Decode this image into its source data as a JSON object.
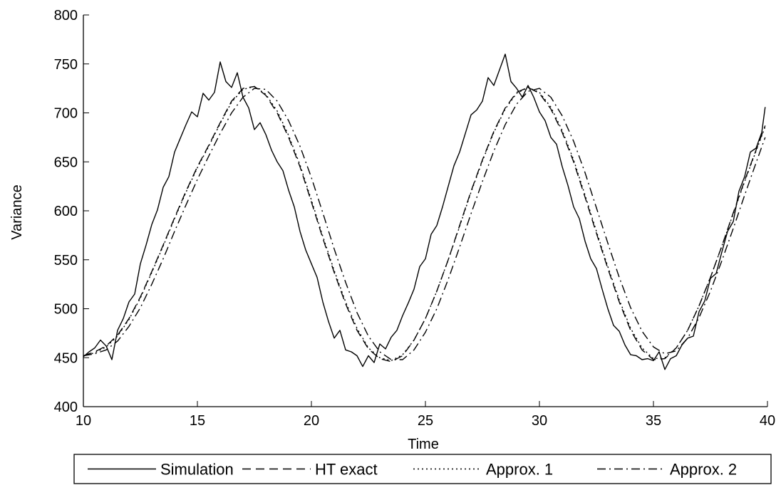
{
  "chart_data": {
    "type": "line",
    "xlabel": "Time",
    "ylabel": "Variance",
    "xlim": [
      10,
      40
    ],
    "ylim": [
      400,
      800
    ],
    "xticks": [
      10,
      15,
      20,
      25,
      30,
      35,
      40
    ],
    "yticks": [
      400,
      450,
      500,
      550,
      600,
      650,
      700,
      750,
      800
    ],
    "xtick_labels": [
      "10",
      "15",
      "20",
      "25",
      "30",
      "35",
      "40"
    ],
    "ytick_labels": [
      "400",
      "450",
      "500",
      "550",
      "600",
      "650",
      "700",
      "750",
      "800"
    ],
    "grid": false,
    "legend_position": "bottom",
    "legend_orientation": "horizontal",
    "line_color": "#000000",
    "series": [
      {
        "name": "Simulation",
        "style": "solid",
        "x": [
          10.0,
          10.25,
          10.5,
          10.75,
          11.0,
          11.25,
          11.5,
          11.75,
          12.0,
          12.25,
          12.5,
          12.75,
          13.0,
          13.25,
          13.5,
          13.75,
          14.0,
          14.25,
          14.5,
          14.75,
          15.0,
          15.25,
          15.5,
          15.75,
          16.0,
          16.25,
          16.5,
          16.75,
          17.0,
          17.25,
          17.5,
          17.75,
          18.0,
          18.25,
          18.5,
          18.75,
          19.0,
          19.25,
          19.5,
          19.75,
          20.0,
          20.25,
          20.5,
          20.75,
          21.0,
          21.25,
          21.5,
          21.75,
          22.0,
          22.25,
          22.5,
          22.75,
          23.0,
          23.25,
          23.5,
          23.75,
          24.0,
          24.25,
          24.5,
          24.75,
          25.0,
          25.25,
          25.5,
          25.75,
          26.0,
          26.25,
          26.5,
          26.75,
          27.0,
          27.25,
          27.5,
          27.75,
          28.0,
          28.25,
          28.5,
          28.75,
          29.0,
          29.25,
          29.5,
          29.75,
          30.0,
          30.25,
          30.5,
          30.75,
          31.0,
          31.25,
          31.5,
          31.75,
          32.0,
          32.25,
          32.5,
          32.75,
          33.0,
          33.25,
          33.5,
          33.75,
          34.0,
          34.25,
          34.5,
          34.75,
          35.0,
          35.25,
          35.5,
          35.75,
          36.0,
          36.25,
          36.5,
          36.75,
          37.0,
          37.25,
          37.5,
          37.75,
          38.0,
          38.25,
          38.5,
          38.75,
          39.0,
          39.25,
          39.5,
          39.75,
          39.9
        ],
        "y": [
          451,
          456,
          460,
          468,
          462,
          448,
          478,
          490,
          507,
          515,
          546,
          565,
          586,
          601,
          624,
          635,
          660,
          674,
          688,
          701,
          696,
          720,
          713,
          721,
          752,
          732,
          726,
          741,
          716,
          705,
          683,
          690,
          678,
          662,
          650,
          641,
          621,
          604,
          579,
          560,
          546,
          532,
          507,
          487,
          470,
          478,
          458,
          456,
          452,
          441,
          452,
          445,
          464,
          459,
          471,
          478,
          493,
          506,
          520,
          543,
          551,
          576,
          585,
          604,
          625,
          646,
          660,
          679,
          698,
          703,
          712,
          736,
          728,
          744,
          760,
          732,
          725,
          716,
          728,
          716,
          701,
          692,
          675,
          668,
          645,
          626,
          604,
          592,
          569,
          551,
          541,
          520,
          500,
          483,
          477,
          463,
          453,
          452,
          448,
          449,
          447,
          456,
          438,
          449,
          452,
          463,
          470,
          472,
          497,
          508,
          531,
          536,
          558,
          579,
          589,
          620,
          635,
          660,
          664,
          680,
          706
        ]
      },
      {
        "name": "HT exact",
        "style": "dashed",
        "x": [
          10,
          10.5,
          11,
          11.5,
          12,
          12.5,
          13,
          13.5,
          14,
          14.5,
          15,
          15.5,
          16,
          16.5,
          17,
          17.5,
          18,
          18.5,
          19,
          19.5,
          20,
          20.5,
          21,
          21.5,
          22,
          22.5,
          23,
          23.5,
          24,
          24.5,
          25,
          25.5,
          26,
          26.5,
          27,
          27.5,
          28,
          28.5,
          29,
          29.5,
          30,
          30.5,
          31,
          31.5,
          32,
          32.5,
          33,
          33.5,
          34,
          34.5,
          35,
          35.5,
          36,
          36.5,
          37,
          37.5,
          38,
          38.5,
          39,
          39.5,
          39.9
        ],
        "y": [
          452,
          456,
          462,
          473,
          490,
          512,
          538,
          565,
          593,
          620,
          645,
          667,
          690,
          712,
          725,
          727,
          718,
          700,
          675,
          645,
          609,
          572,
          537,
          505,
          478,
          459,
          449,
          446,
          452,
          468,
          490,
          518,
          550,
          585,
          620,
          652,
          681,
          705,
          721,
          726,
          720,
          704,
          680,
          650,
          614,
          577,
          541,
          507,
          478,
          458,
          448,
          449,
          460,
          478,
          503,
          532,
          564,
          598,
          631,
          662,
          687
        ]
      },
      {
        "name": "Approx. 1",
        "style": "dotted",
        "x": [
          10,
          10.5,
          11,
          11.5,
          12,
          12.5,
          13,
          13.5,
          14,
          14.5,
          15,
          15.5,
          16,
          16.5,
          17,
          17.5,
          18,
          18.5,
          19,
          19.5,
          20,
          20.5,
          21,
          21.5,
          22,
          22.5,
          23,
          23.5,
          24,
          24.5,
          25,
          25.5,
          26,
          26.5,
          27,
          27.5,
          28,
          28.5,
          29,
          29.5,
          30,
          30.5,
          31,
          31.5,
          32,
          32.5,
          33,
          33.5,
          34,
          34.5,
          35,
          35.5,
          36,
          36.5,
          37,
          37.5,
          38,
          38.5,
          39,
          39.5,
          39.9
        ],
        "y": [
          452,
          455,
          461,
          472,
          489,
          511,
          537,
          564,
          592,
          619,
          644,
          666,
          689,
          711,
          724,
          727,
          719,
          702,
          677,
          647,
          611,
          574,
          539,
          507,
          480,
          460,
          450,
          447,
          453,
          468,
          490,
          518,
          550,
          584,
          619,
          651,
          680,
          704,
          720,
          726,
          721,
          706,
          682,
          652,
          616,
          579,
          543,
          509,
          480,
          460,
          449,
          450,
          460,
          478,
          503,
          532,
          564,
          597,
          630,
          661,
          686
        ]
      },
      {
        "name": "Approx. 2",
        "style": "dashdot",
        "x": [
          10,
          10.5,
          11,
          11.5,
          12,
          12.5,
          13,
          13.5,
          14,
          14.5,
          15,
          15.5,
          16,
          16.5,
          17,
          17.5,
          18,
          18.5,
          19,
          19.5,
          20,
          20.5,
          21,
          21.5,
          22,
          22.5,
          23,
          23.5,
          24,
          24.5,
          25,
          25.5,
          26,
          26.5,
          27,
          27.5,
          28,
          28.5,
          29,
          29.5,
          30,
          30.5,
          31,
          31.5,
          32,
          32.5,
          33,
          33.5,
          34,
          34.5,
          35,
          35.5,
          36,
          36.5,
          37,
          37.5,
          38,
          38.5,
          39,
          39.5,
          39.9
        ],
        "y": [
          452,
          454,
          458,
          467,
          482,
          501,
          525,
          551,
          579,
          606,
          632,
          656,
          679,
          700,
          716,
          725,
          724,
          712,
          692,
          666,
          634,
          598,
          561,
          527,
          496,
          472,
          456,
          448,
          448,
          458,
          476,
          500,
          530,
          563,
          597,
          630,
          661,
          688,
          709,
          722,
          725,
          716,
          697,
          671,
          639,
          603,
          567,
          532,
          501,
          477,
          461,
          454,
          457,
          470,
          491,
          518,
          549,
          582,
          616,
          649,
          675
        ]
      }
    ]
  }
}
